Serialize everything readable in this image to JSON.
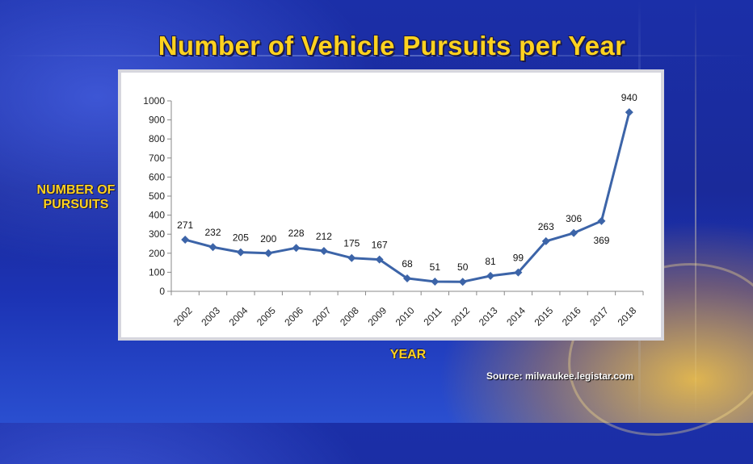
{
  "chart_data": {
    "type": "line",
    "title": "Number of Vehicle Pursuits per Year",
    "ylabel": "NUMBER OF PURSUITS",
    "xlabel": "YEAR",
    "categories": [
      "2002",
      "2003",
      "2004",
      "2005",
      "2006",
      "2007",
      "2008",
      "2009",
      "2010",
      "2011",
      "2012",
      "2013",
      "2014",
      "2015",
      "2016",
      "2017",
      "2018"
    ],
    "series": [
      {
        "values": [
          271,
          232,
          205,
          200,
          228,
          212,
          175,
          167,
          68,
          51,
          50,
          81,
          99,
          263,
          306,
          369,
          940
        ]
      }
    ],
    "ylim": [
      0,
      1000
    ],
    "yticks": [
      0,
      100,
      200,
      300,
      400,
      500,
      600,
      700,
      800,
      900,
      1000
    ],
    "grid": false,
    "legend": "none",
    "line_color": "#3c64a8",
    "source": "Source: milwaukee.legistar.com"
  }
}
